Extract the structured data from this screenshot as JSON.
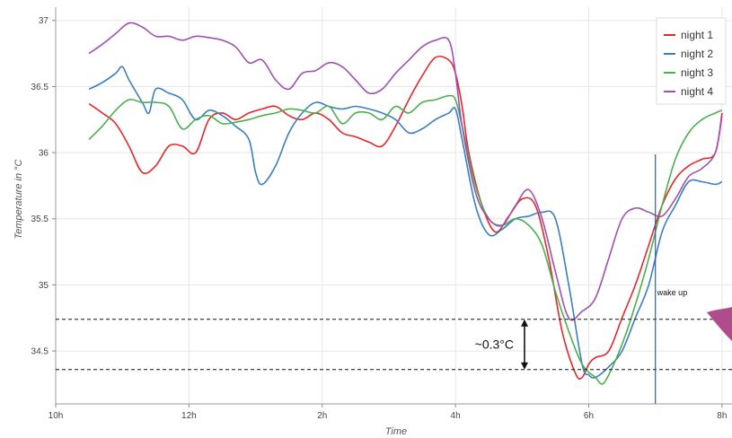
{
  "chart_data": {
    "type": "line",
    "title": "",
    "xlabel": "Time",
    "ylabel": "Temperature in °C",
    "xlim": [
      10,
      20.15
    ],
    "ylim": [
      34.1,
      37.1
    ],
    "x_ticks": [
      {
        "value": 10,
        "label": "10h"
      },
      {
        "value": 12,
        "label": "12h"
      },
      {
        "value": 14,
        "label": "2h"
      },
      {
        "value": 16,
        "label": "4h"
      },
      {
        "value": 18,
        "label": "6h"
      },
      {
        "value": 20,
        "label": "8h"
      }
    ],
    "y_ticks": [
      {
        "value": 34.5,
        "label": "34.5"
      },
      {
        "value": 35,
        "label": "35"
      },
      {
        "value": 35.5,
        "label": "35.5"
      },
      {
        "value": 36,
        "label": "36"
      },
      {
        "value": 36.5,
        "label": "36.5"
      },
      {
        "value": 37,
        "label": "37"
      }
    ],
    "grid": true,
    "legend_position": "top-right",
    "series": [
      {
        "name": "night 1",
        "color": "#e8272b",
        "x": [
          10.5,
          10.7,
          10.9,
          11.1,
          11.3,
          11.5,
          11.7,
          11.9,
          12.1,
          12.3,
          12.5,
          12.7,
          12.9,
          13.1,
          13.3,
          13.5,
          13.7,
          13.9,
          14.1,
          14.3,
          14.5,
          14.7,
          14.9,
          15.1,
          15.3,
          15.5,
          15.7,
          15.9,
          16.0,
          16.1,
          16.2,
          16.4,
          16.6,
          16.8,
          17.0,
          17.2,
          17.4,
          17.6,
          17.8,
          17.9,
          18.0,
          18.1,
          18.3,
          18.5,
          18.7,
          18.9,
          19.1,
          19.3,
          19.5,
          19.7,
          19.9,
          20.0
        ],
        "y": [
          36.37,
          36.3,
          36.22,
          36.05,
          35.85,
          35.9,
          36.05,
          36.05,
          36.0,
          36.25,
          36.3,
          36.25,
          36.3,
          36.33,
          36.35,
          36.28,
          36.25,
          36.3,
          36.25,
          36.15,
          36.12,
          36.08,
          36.05,
          36.2,
          36.4,
          36.58,
          36.72,
          36.7,
          36.6,
          36.35,
          36.0,
          35.6,
          35.4,
          35.52,
          35.65,
          35.6,
          35.2,
          34.65,
          34.33,
          34.3,
          34.4,
          34.45,
          34.5,
          34.75,
          35.0,
          35.3,
          35.6,
          35.8,
          35.9,
          35.95,
          36.0,
          36.3
        ]
      },
      {
        "name": "night 2",
        "color": "#3a7fc0",
        "x": [
          10.5,
          10.7,
          10.9,
          11.0,
          11.1,
          11.3,
          11.4,
          11.5,
          11.7,
          11.9,
          12.1,
          12.3,
          12.5,
          12.7,
          12.9,
          13.0,
          13.1,
          13.3,
          13.5,
          13.7,
          13.9,
          14.1,
          14.3,
          14.5,
          14.7,
          14.9,
          15.1,
          15.3,
          15.5,
          15.7,
          15.9,
          16.0,
          16.1,
          16.3,
          16.5,
          16.7,
          16.9,
          17.1,
          17.3,
          17.5,
          17.7,
          17.9,
          18.0,
          18.1,
          18.3,
          18.5,
          18.7,
          18.9,
          19.1,
          19.3,
          19.5,
          19.7,
          19.9,
          20.0
        ],
        "y": [
          36.48,
          36.53,
          36.6,
          36.65,
          36.55,
          36.38,
          36.3,
          36.48,
          36.45,
          36.4,
          36.25,
          36.32,
          36.28,
          36.2,
          36.1,
          35.85,
          35.76,
          35.9,
          36.15,
          36.3,
          36.38,
          36.35,
          36.33,
          36.35,
          36.33,
          36.3,
          36.25,
          36.15,
          36.18,
          36.25,
          36.3,
          36.33,
          36.1,
          35.6,
          35.38,
          35.42,
          35.5,
          35.52,
          35.55,
          35.5,
          35.0,
          34.4,
          34.32,
          34.3,
          34.38,
          34.5,
          34.75,
          35.0,
          35.4,
          35.6,
          35.78,
          35.78,
          35.76,
          35.78
        ]
      },
      {
        "name": "night 3",
        "color": "#4caf50",
        "x": [
          10.5,
          10.7,
          10.9,
          11.1,
          11.3,
          11.5,
          11.7,
          11.9,
          12.1,
          12.3,
          12.5,
          12.7,
          12.9,
          13.1,
          13.3,
          13.5,
          13.7,
          13.9,
          14.1,
          14.3,
          14.5,
          14.7,
          14.9,
          15.1,
          15.3,
          15.5,
          15.7,
          15.9,
          16.0,
          16.1,
          16.3,
          16.5,
          16.7,
          16.9,
          17.1,
          17.3,
          17.5,
          17.7,
          17.9,
          18.1,
          18.2,
          18.3,
          18.5,
          18.7,
          18.9,
          19.1,
          19.3,
          19.5,
          19.7,
          19.9,
          20.0
        ],
        "y": [
          36.1,
          36.2,
          36.32,
          36.4,
          36.38,
          36.38,
          36.35,
          36.18,
          36.25,
          36.28,
          36.22,
          36.23,
          36.25,
          36.28,
          36.3,
          36.33,
          36.32,
          36.3,
          36.35,
          36.22,
          36.3,
          36.3,
          36.25,
          36.35,
          36.3,
          36.38,
          36.4,
          36.43,
          36.4,
          36.2,
          35.75,
          35.5,
          35.45,
          35.5,
          35.45,
          35.3,
          34.95,
          34.65,
          34.4,
          34.3,
          34.25,
          34.32,
          34.55,
          34.85,
          35.2,
          35.6,
          35.95,
          36.15,
          36.25,
          36.3,
          36.32
        ]
      },
      {
        "name": "night 4",
        "color": "#a050b0",
        "x": [
          10.5,
          10.7,
          10.9,
          11.1,
          11.3,
          11.5,
          11.7,
          11.9,
          12.1,
          12.3,
          12.5,
          12.7,
          12.9,
          13.1,
          13.3,
          13.5,
          13.7,
          13.9,
          14.1,
          14.3,
          14.5,
          14.7,
          14.9,
          15.1,
          15.3,
          15.5,
          15.7,
          15.9,
          16.0,
          16.1,
          16.3,
          16.5,
          16.7,
          16.9,
          17.1,
          17.3,
          17.5,
          17.7,
          17.9,
          18.1,
          18.3,
          18.5,
          18.7,
          18.9,
          19.1,
          19.3,
          19.5,
          19.7,
          19.9,
          20.0
        ],
        "y": [
          36.75,
          36.82,
          36.9,
          36.98,
          36.95,
          36.88,
          36.88,
          36.85,
          36.88,
          36.87,
          36.85,
          36.8,
          36.68,
          36.7,
          36.55,
          36.48,
          36.6,
          36.62,
          36.68,
          36.65,
          36.55,
          36.45,
          36.48,
          36.6,
          36.7,
          36.8,
          36.85,
          36.85,
          36.6,
          36.2,
          35.7,
          35.5,
          35.45,
          35.6,
          35.72,
          35.5,
          35.1,
          34.75,
          34.8,
          34.9,
          35.2,
          35.5,
          35.58,
          35.55,
          35.52,
          35.65,
          35.82,
          35.88,
          36.0,
          36.28
        ]
      }
    ],
    "annotations": {
      "reference_lines": [
        34.74,
        34.36
      ],
      "difference_label": "~0.3°C",
      "event_x": 19.0,
      "event_label": "wake up"
    }
  }
}
